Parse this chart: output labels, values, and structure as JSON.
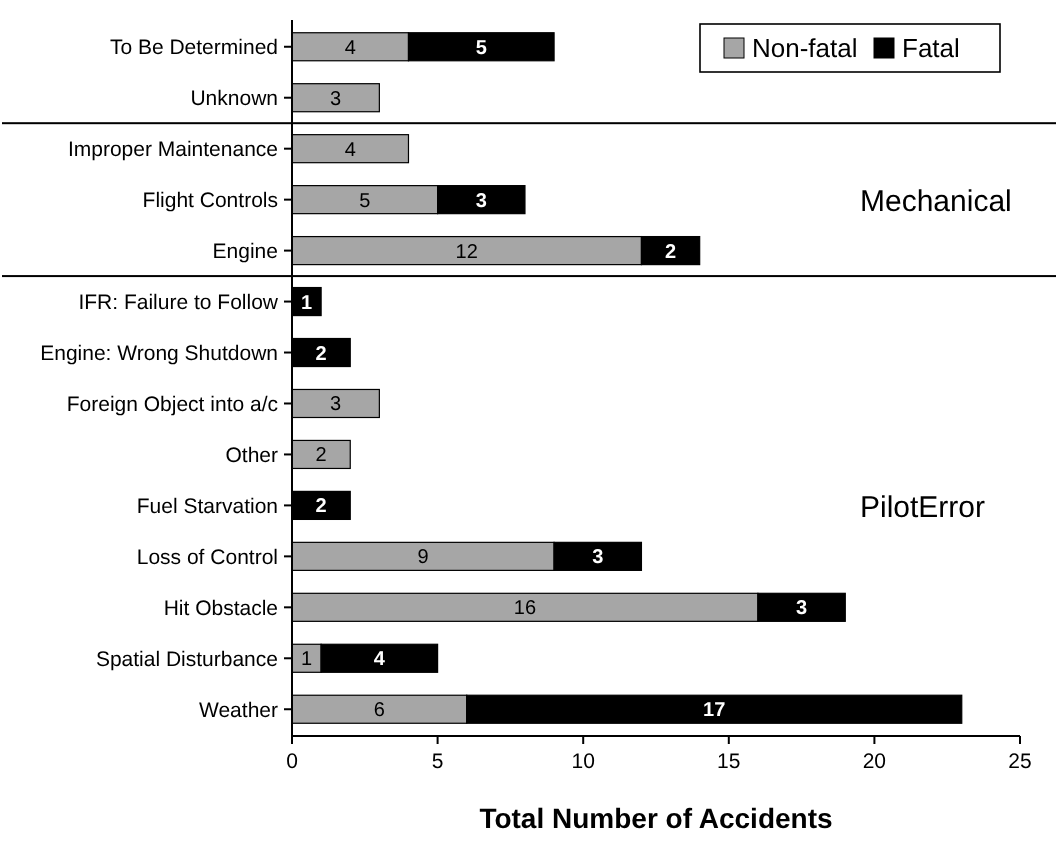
{
  "chart_data": {
    "type": "bar",
    "orientation": "horizontal",
    "stacked": true,
    "xlabel": "Total Number of Accidents",
    "categories": [
      "To Be Determined",
      "Unknown",
      "Improper Maintenance",
      "Flight Controls",
      "Engine",
      "IFR: Failure to Follow",
      "Engine: Wrong Shutdown",
      "Foreign Object into a/c",
      "Other",
      "Fuel Starvation",
      "Loss of Control",
      "Hit Obstacle",
      "Spatial Disturbance",
      "Weather"
    ],
    "series": [
      {
        "name": "Non-fatal",
        "color": "#a6a6a6",
        "values": [
          4,
          3,
          4,
          5,
          12,
          null,
          null,
          3,
          2,
          null,
          9,
          16,
          1,
          6
        ]
      },
      {
        "name": "Fatal",
        "color": "#000000",
        "values": [
          5,
          null,
          null,
          3,
          2,
          1,
          2,
          null,
          null,
          2,
          3,
          3,
          4,
          17
        ]
      }
    ],
    "xlim": [
      0,
      25
    ],
    "xticks": [
      0,
      5,
      10,
      15,
      20,
      25
    ],
    "legend": "top right",
    "data_labels": true,
    "annotations": [
      "Mechanical",
      "PilotError"
    ]
  }
}
